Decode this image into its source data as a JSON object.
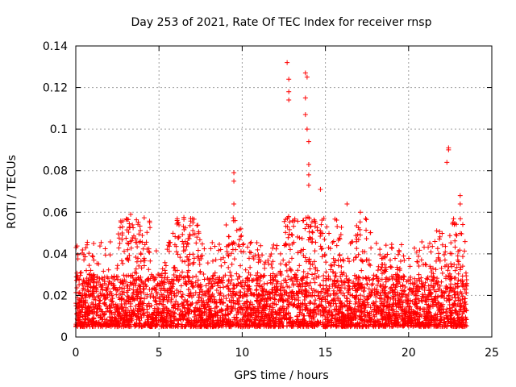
{
  "chart_data": {
    "type": "scatter",
    "title": "Day 253 of 2021, Rate Of TEC Index for receiver rnsp",
    "xlabel": "GPS time / hours",
    "ylabel": "ROTI / TECUs",
    "xlim": [
      0,
      25
    ],
    "ylim": [
      0,
      0.14
    ],
    "xticks": [
      "0",
      "5",
      "10",
      "15",
      "20",
      "25"
    ],
    "yticks": [
      "0",
      "0.02",
      "0.04",
      "0.06",
      "0.08",
      "0.1",
      "0.12",
      "0.14"
    ],
    "grid": true,
    "marker": "+",
    "color": "#ff0000",
    "series": [
      {
        "name": "ROTI",
        "x_range": [
          0,
          23.5
        ],
        "baseline_band": [
          0.005,
          0.03
        ],
        "notable_points": [
          {
            "x": 3.3,
            "y": 0.059
          },
          {
            "x": 6.9,
            "y": 0.057
          },
          {
            "x": 9.5,
            "y": 0.079
          },
          {
            "x": 9.5,
            "y": 0.075
          },
          {
            "x": 9.5,
            "y": 0.064
          },
          {
            "x": 12.7,
            "y": 0.132
          },
          {
            "x": 12.8,
            "y": 0.124
          },
          {
            "x": 12.8,
            "y": 0.118
          },
          {
            "x": 12.8,
            "y": 0.114
          },
          {
            "x": 13.8,
            "y": 0.127
          },
          {
            "x": 13.9,
            "y": 0.125
          },
          {
            "x": 13.8,
            "y": 0.115
          },
          {
            "x": 13.8,
            "y": 0.107
          },
          {
            "x": 13.9,
            "y": 0.1
          },
          {
            "x": 14.0,
            "y": 0.094
          },
          {
            "x": 14.0,
            "y": 0.083
          },
          {
            "x": 14.0,
            "y": 0.078
          },
          {
            "x": 14.0,
            "y": 0.073
          },
          {
            "x": 14.7,
            "y": 0.071
          },
          {
            "x": 16.3,
            "y": 0.064
          },
          {
            "x": 17.1,
            "y": 0.06
          },
          {
            "x": 22.4,
            "y": 0.091
          },
          {
            "x": 22.4,
            "y": 0.09
          },
          {
            "x": 22.3,
            "y": 0.084
          },
          {
            "x": 23.1,
            "y": 0.068
          },
          {
            "x": 23.1,
            "y": 0.064
          }
        ]
      }
    ]
  }
}
